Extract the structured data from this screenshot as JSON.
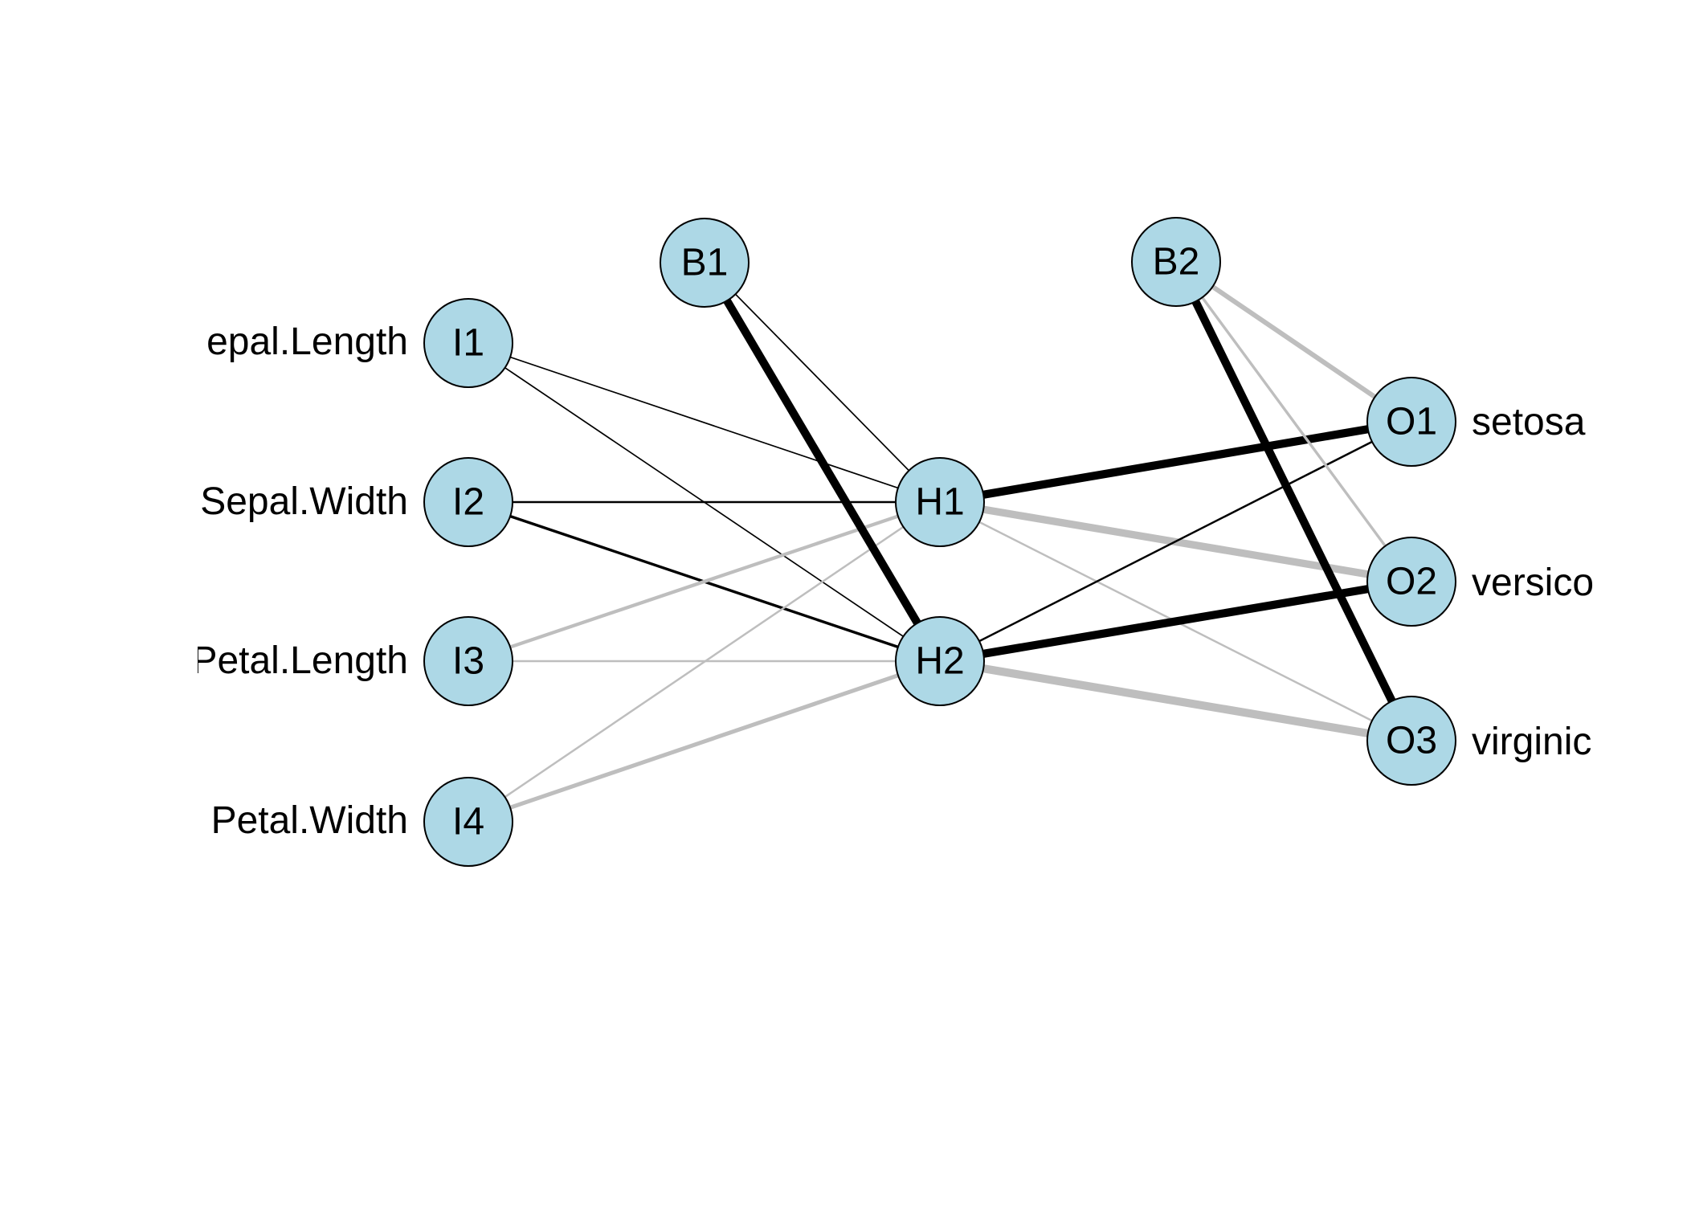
{
  "colors": {
    "node_fill": "#add8e6",
    "node_stroke": "#000000",
    "positive_weight": "#000000",
    "negative_weight": "#bebebe"
  },
  "nodes": [
    {
      "id": "I1",
      "label": "I1",
      "layer": "input"
    },
    {
      "id": "I2",
      "label": "I2",
      "layer": "input"
    },
    {
      "id": "I3",
      "label": "I3",
      "layer": "input"
    },
    {
      "id": "I4",
      "label": "I4",
      "layer": "input"
    },
    {
      "id": "B1",
      "label": "B1",
      "layer": "bias"
    },
    {
      "id": "H1",
      "label": "H1",
      "layer": "hidden"
    },
    {
      "id": "H2",
      "label": "H2",
      "layer": "hidden"
    },
    {
      "id": "B2",
      "label": "B2",
      "layer": "bias"
    },
    {
      "id": "O1",
      "label": "O1",
      "layer": "output"
    },
    {
      "id": "O2",
      "label": "O2",
      "layer": "output"
    },
    {
      "id": "O3",
      "label": "O3",
      "layer": "output"
    }
  ],
  "input_labels": [
    "epal.Length",
    "Sepal.Width",
    "Petal.Length",
    "Petal.Width"
  ],
  "output_labels": [
    "setosa",
    "versico",
    "virginic"
  ],
  "connections": [
    {
      "from": "I1",
      "to": "H1",
      "sign": "positive",
      "strength": 1
    },
    {
      "from": "I1",
      "to": "H2",
      "sign": "positive",
      "strength": 1
    },
    {
      "from": "I2",
      "to": "H1",
      "sign": "positive",
      "strength": 1.5
    },
    {
      "from": "I2",
      "to": "H2",
      "sign": "positive",
      "strength": 2
    },
    {
      "from": "I3",
      "to": "H1",
      "sign": "negative",
      "strength": 2.5
    },
    {
      "from": "I3",
      "to": "H2",
      "sign": "negative",
      "strength": 1.5
    },
    {
      "from": "I4",
      "to": "H1",
      "sign": "negative",
      "strength": 1.5
    },
    {
      "from": "I4",
      "to": "H2",
      "sign": "negative",
      "strength": 3
    },
    {
      "from": "B1",
      "to": "H1",
      "sign": "positive",
      "strength": 1
    },
    {
      "from": "B1",
      "to": "H2",
      "sign": "positive",
      "strength": 6
    },
    {
      "from": "H1",
      "to": "O1",
      "sign": "positive",
      "strength": 6
    },
    {
      "from": "H1",
      "to": "O2",
      "sign": "negative",
      "strength": 5.5
    },
    {
      "from": "H1",
      "to": "O3",
      "sign": "negative",
      "strength": 1.5
    },
    {
      "from": "H2",
      "to": "O1",
      "sign": "positive",
      "strength": 1.5
    },
    {
      "from": "H2",
      "to": "O2",
      "sign": "positive",
      "strength": 6
    },
    {
      "from": "H2",
      "to": "O3",
      "sign": "negative",
      "strength": 6
    },
    {
      "from": "B2",
      "to": "O1",
      "sign": "negative",
      "strength": 3.5
    },
    {
      "from": "B2",
      "to": "O2",
      "sign": "negative",
      "strength": 2
    },
    {
      "from": "B2",
      "to": "O3",
      "sign": "positive",
      "strength": 6
    }
  ]
}
